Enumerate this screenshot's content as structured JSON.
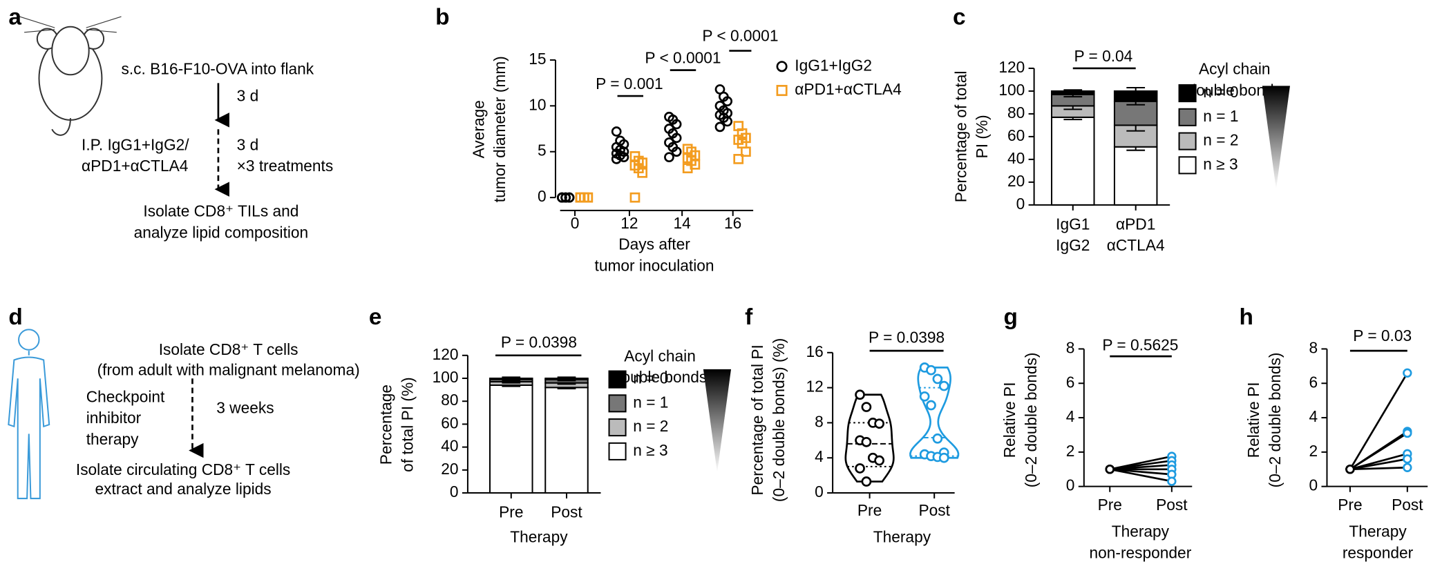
{
  "schematics": [
    {
      "panel": "a",
      "texts": [
        {
          "text": "s.c. B16-F10-OVA into flank"
        },
        {
          "text": "3 d"
        },
        {
          "text": "I.P. IgG1+IgG2/"
        },
        {
          "text": "αPD1+αCTLA4",
          "color": "#f39c1f"
        },
        {
          "text": "3 d"
        },
        {
          "text": "×3 treatments"
        },
        {
          "text": "Isolate CD8⁺ TILs and"
        },
        {
          "text": "analyze lipid composition"
        }
      ]
    },
    {
      "panel": "d",
      "texts": [
        {
          "text": "Isolate CD8⁺ T cells"
        },
        {
          "text": "(from adult with malignant melanoma)"
        },
        {
          "text": "Checkpoint",
          "color": "#1e9be0"
        },
        {
          "text": "inhibitor",
          "color": "#1e9be0"
        },
        {
          "text": "therapy",
          "color": "#1e9be0"
        },
        {
          "text": "3 weeks"
        },
        {
          "text": "Isolate circulating CD8⁺ T cells"
        },
        {
          "text": "extract and analyze lipids"
        }
      ]
    }
  ],
  "chart_data": [
    {
      "panel": "b",
      "type": "scatter",
      "categories": [
        "0",
        "12",
        "14",
        "16"
      ],
      "xlabel": [
        "Days after",
        "tumor inoculation"
      ],
      "ylabel": [
        "Average",
        "tumor diameter (mm)"
      ],
      "ylim": [
        0,
        15
      ],
      "yticks": [
        0,
        5,
        10,
        15
      ],
      "series": [
        {
          "name": "IgG1+IgG2",
          "color": "#000000",
          "marker": "circle",
          "values": [
            [
              0,
              0,
              0,
              0,
              0,
              0,
              0,
              0,
              0,
              0
            ],
            [
              7.2,
              6.2,
              5.8,
              5.5,
              5.2,
              5.0,
              4.8,
              4.6,
              4.4,
              4.2
            ],
            [
              8.8,
              8.5,
              8.0,
              7.5,
              7.0,
              6.5,
              6.0,
              5.5,
              5.0,
              4.4
            ],
            [
              11.8,
              11.0,
              10.5,
              10.0,
              9.5,
              9.2,
              9.0,
              8.7,
              8.3,
              7.7
            ]
          ]
        },
        {
          "name": "αPD1+αCTLA4",
          "color": "#f39c1f",
          "marker": "square",
          "values": [
            [
              0,
              0,
              0,
              0,
              0,
              0,
              0
            ],
            [
              4.5,
              4.0,
              3.8,
              3.5,
              3.2,
              2.7,
              0
            ],
            [
              5.3,
              5.0,
              4.6,
              4.3,
              4.0,
              3.6,
              3.2
            ],
            [
              7.8,
              7.0,
              6.5,
              6.3,
              5.9,
              5.0,
              4.2
            ]
          ]
        }
      ],
      "annotations": [
        "P = 0.001",
        "P < 0.0001",
        "P < 0.0001"
      ]
    },
    {
      "panel": "c",
      "type": "stacked_bar",
      "categories": [
        [
          "IgG1",
          "IgG2"
        ],
        [
          "αPD1",
          "αCTLA4"
        ]
      ],
      "ylabel": [
        "Percentage of total",
        "PI (%)"
      ],
      "ylim": [
        0,
        120
      ],
      "yticks": [
        0,
        20,
        40,
        60,
        80,
        100,
        120
      ],
      "legend_title": [
        "Acyl chain",
        "double bonds"
      ],
      "series": [
        {
          "name": "n = 0",
          "color": "#000000",
          "values": [
            3,
            9
          ],
          "errors": [
            1,
            3
          ]
        },
        {
          "name": "n = 1",
          "color": "#777777",
          "values": [
            10,
            21
          ],
          "errors": [
            2,
            3
          ]
        },
        {
          "name": "n = 2",
          "color": "#bbbbbb",
          "values": [
            10,
            19
          ],
          "errors": [
            3,
            5
          ]
        },
        {
          "name": "n ≥ 3",
          "color": "#ffffff",
          "values": [
            77,
            51
          ],
          "errors": [
            2,
            3
          ]
        }
      ],
      "annotations": [
        "P = 0.04"
      ]
    },
    {
      "panel": "e",
      "type": "stacked_bar",
      "categories": [
        [
          "Pre"
        ],
        [
          "Post"
        ]
      ],
      "xlabel": [
        "Therapy"
      ],
      "ylabel": [
        "Percentage",
        "of total PI (%)"
      ],
      "ylim": [
        0,
        120
      ],
      "yticks": [
        0,
        20,
        40,
        60,
        80,
        100,
        120
      ],
      "legend_title": [
        "Acyl chain",
        "double bonds"
      ],
      "series": [
        {
          "name": "n = 0",
          "color": "#000000",
          "values": [
            1,
            1
          ],
          "errors": [
            1,
            1
          ]
        },
        {
          "name": "n = 1",
          "color": "#777777",
          "values": [
            2,
            3
          ],
          "errors": [
            1,
            1
          ]
        },
        {
          "name": "n = 2",
          "color": "#bbbbbb",
          "values": [
            3,
            4
          ],
          "errors": [
            1,
            1
          ]
        },
        {
          "name": "n ≥ 3",
          "color": "#ffffff",
          "values": [
            94,
            92
          ],
          "errors": [
            1,
            1
          ]
        }
      ],
      "annotations": [
        "P = 0.0398"
      ]
    },
    {
      "panel": "f",
      "type": "violin",
      "categories": [
        "Pre",
        "Post"
      ],
      "xlabel": [
        "Therapy"
      ],
      "ylabel": [
        "Percentage of total PI",
        "(0–2 double bonds) (%)"
      ],
      "ylim": [
        0,
        16
      ],
      "yticks": [
        0,
        4,
        8,
        12,
        16
      ],
      "groups": [
        {
          "color": "#000000",
          "values": [
            11.2,
            9.8,
            8.0,
            7.9,
            6.0,
            5.8,
            4.0,
            3.7,
            2.8,
            1.3
          ],
          "quartiles": [
            3.0,
            5.6,
            8.0
          ]
        },
        {
          "color": "#1e9be0",
          "values": [
            14.3,
            14.0,
            13.0,
            12.2,
            11.0,
            10.0,
            6.2,
            4.6,
            4.4,
            4.2,
            4.1,
            4.0
          ],
          "quartiles": [
            4.2,
            6.3,
            12.0
          ]
        }
      ],
      "annotations": [
        "P = 0.0398"
      ]
    },
    {
      "panel": "g",
      "type": "paired",
      "categories": [
        "Pre",
        "Post"
      ],
      "xlabel": [
        "Therapy",
        "non-responder"
      ],
      "ylabel": [
        "Relative PI",
        "(0–2 double bonds)"
      ],
      "ylim": [
        0,
        8
      ],
      "yticks": [
        0,
        2,
        4,
        6,
        8
      ],
      "color": "#000000",
      "marker_colors": [
        "#000000",
        "#1e9be0"
      ],
      "values": [
        [
          1,
          1,
          1,
          1,
          1,
          1
        ],
        [
          1.75,
          1.5,
          1.25,
          1.0,
          0.7,
          0.3
        ]
      ],
      "annotations": [
        "P = 0.5625"
      ]
    },
    {
      "panel": "h",
      "type": "paired",
      "categories": [
        "Pre",
        "Post"
      ],
      "xlabel": [
        "Therapy",
        "responder"
      ],
      "ylabel": [
        "Relative PI",
        "(0–2 double bonds)"
      ],
      "ylim": [
        0,
        8
      ],
      "yticks": [
        0,
        2,
        4,
        6,
        8
      ],
      "color": "#000000",
      "marker_colors": [
        "#000000",
        "#1e9be0"
      ],
      "values": [
        [
          1,
          1,
          1,
          1,
          1,
          1
        ],
        [
          6.6,
          3.2,
          3.1,
          1.9,
          1.6,
          1.1
        ]
      ],
      "annotations": [
        "P = 0.03"
      ]
    }
  ]
}
